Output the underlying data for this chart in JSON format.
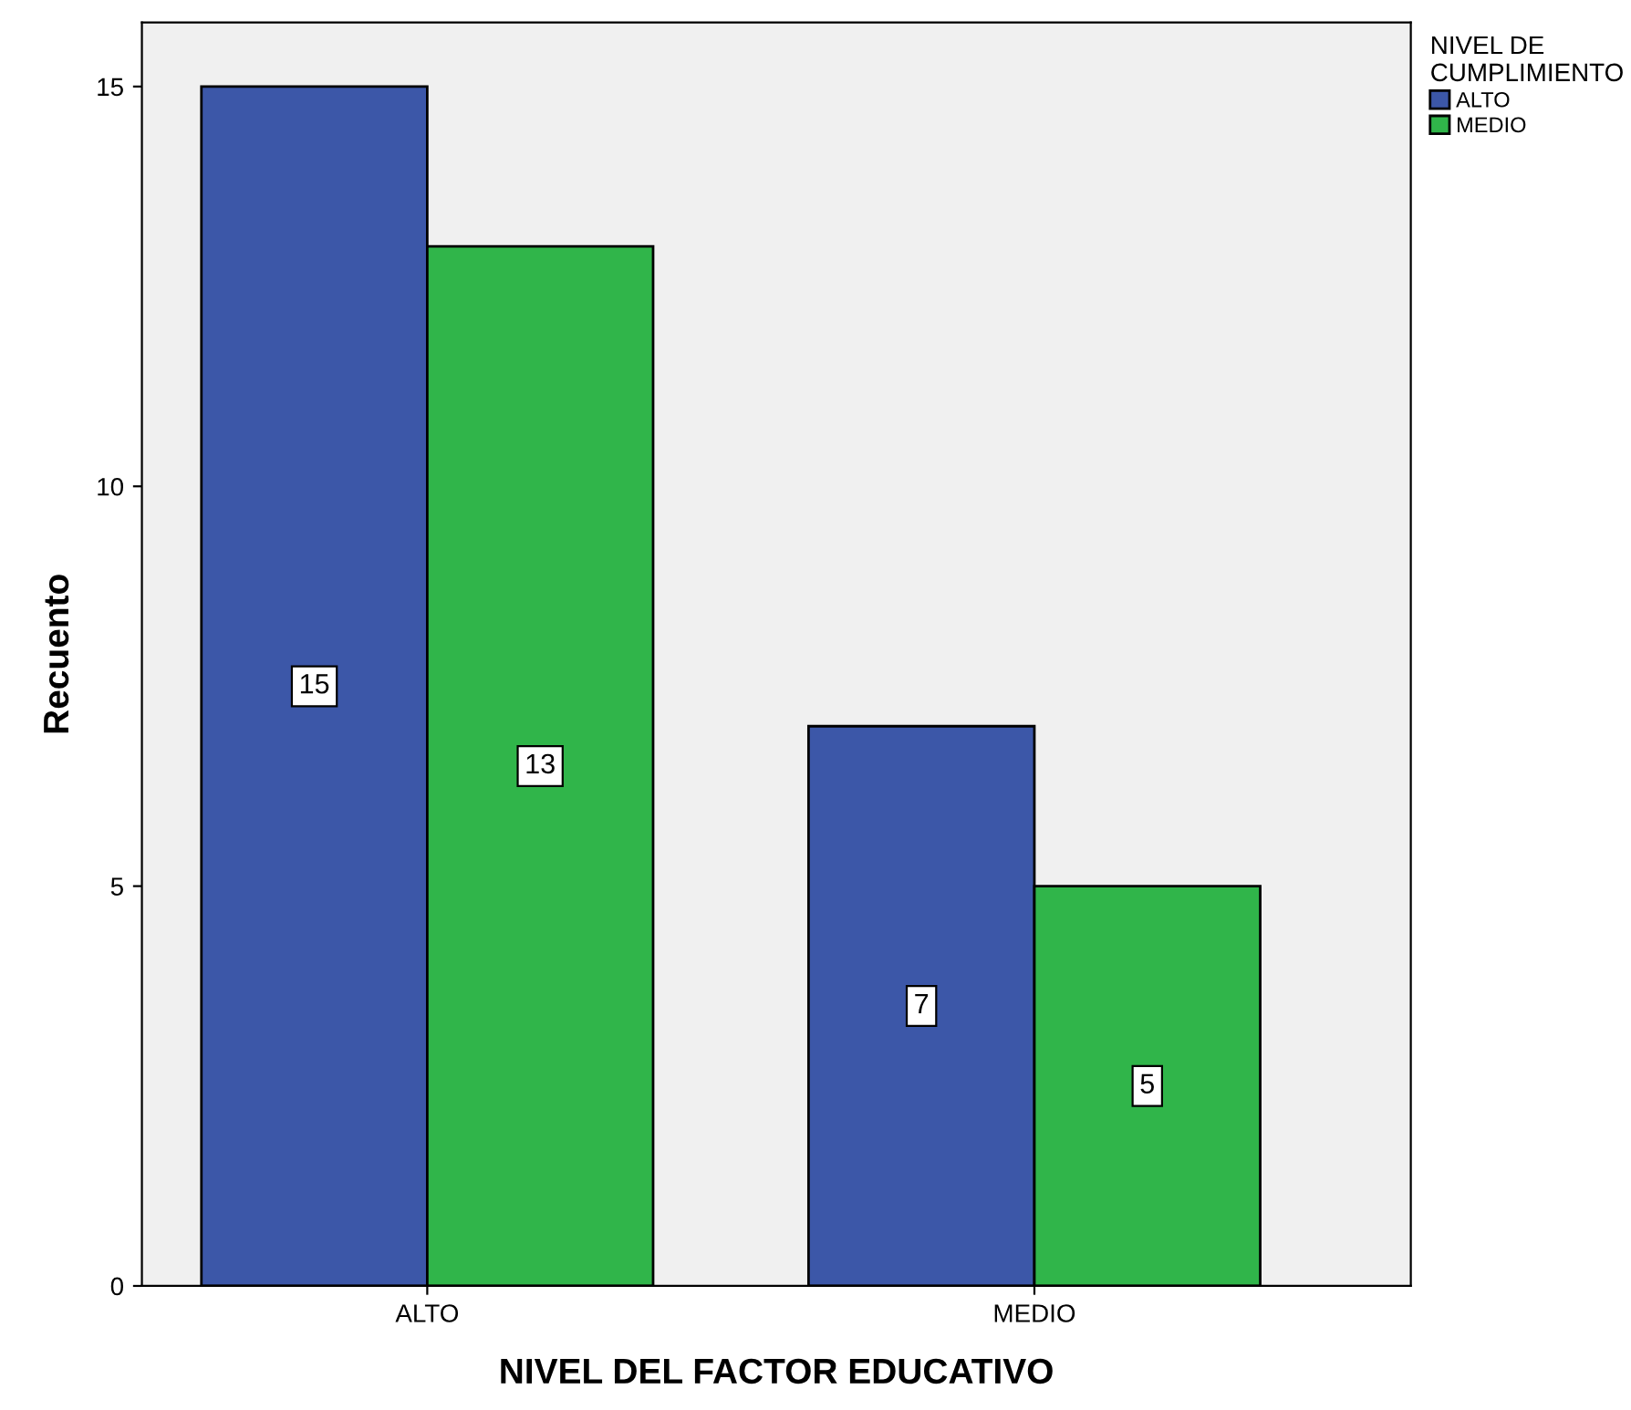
{
  "chart_data": {
    "type": "bar",
    "xlabel": "NIVEL DEL FACTOR EDUCATIVO",
    "ylabel": "Recuento",
    "legend_title": "NIVEL DE\nCUMPLIMIENTO",
    "categories": [
      "ALTO",
      "MEDIO"
    ],
    "series": [
      {
        "name": "ALTO",
        "color": "#3c57a8",
        "values": [
          15,
          7
        ]
      },
      {
        "name": "MEDIO",
        "color": "#30b54a",
        "values": [
          13,
          5
        ]
      }
    ],
    "ylim": [
      0,
      15.8
    ],
    "yticks": [
      0,
      5,
      10,
      15
    ],
    "grid": false,
    "legend": "top right",
    "data_labels": true
  }
}
